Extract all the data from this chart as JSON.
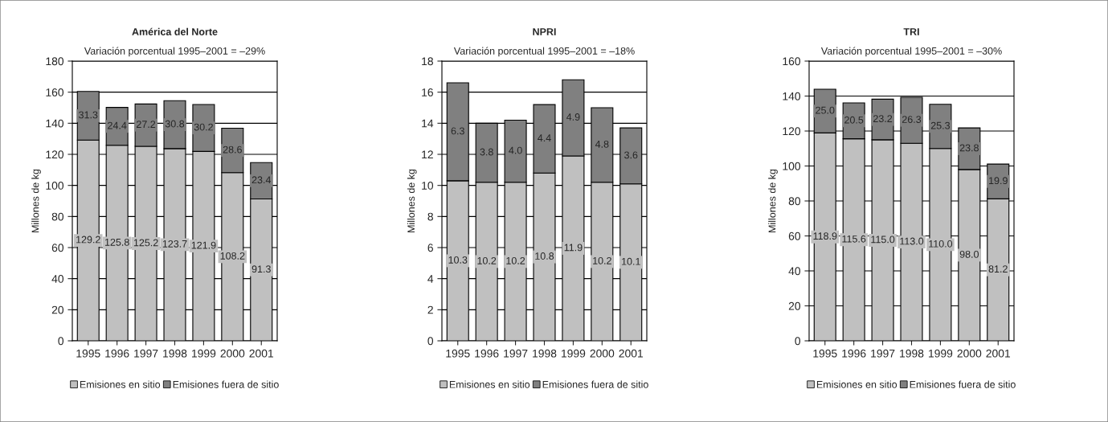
{
  "chart_data": [
    {
      "type": "bar",
      "stacked": true,
      "title": "América del Norte",
      "subtitle": "Variación porcentual 1995–2001 = –29%",
      "ylabel": "Millones de kg",
      "categories": [
        "1995",
        "1996",
        "1997",
        "1998",
        "1999",
        "2000",
        "2001"
      ],
      "ylim": [
        0,
        180
      ],
      "yticks": [
        0,
        20,
        40,
        60,
        80,
        100,
        120,
        140,
        160,
        180
      ],
      "grid": "y",
      "legend": "bottom",
      "series": [
        {
          "name": "Emisiones en sitio",
          "color": "#c0c0c0",
          "values": [
            129.2,
            125.8,
            125.2,
            123.7,
            121.9,
            108.2,
            91.3
          ],
          "value_labels": [
            "129.2",
            "125.8",
            "125.2",
            "123.7",
            "121.9",
            "108.2",
            "91.3"
          ]
        },
        {
          "name": "Emisiones fuera de sitio",
          "color": "#808080",
          "values": [
            31.3,
            24.4,
            27.2,
            30.8,
            30.2,
            28.6,
            23.4
          ],
          "value_labels": [
            "31.3",
            "24.4",
            "27.2",
            "30.8",
            "30.2",
            "28.6",
            "23.4"
          ]
        }
      ]
    },
    {
      "type": "bar",
      "stacked": true,
      "title": "NPRI",
      "subtitle": "Variación porcentual 1995–2001 = –18%",
      "ylabel": "Millones de kg",
      "categories": [
        "1995",
        "1996",
        "1997",
        "1998",
        "1999",
        "2000",
        "2001"
      ],
      "ylim": [
        0,
        18
      ],
      "yticks": [
        0,
        2,
        4,
        6,
        8,
        10,
        12,
        14,
        16,
        18
      ],
      "grid": "y",
      "legend": "bottom",
      "series": [
        {
          "name": "Emisiones en sitio",
          "color": "#c0c0c0",
          "values": [
            10.3,
            10.2,
            10.2,
            10.8,
            11.9,
            10.2,
            10.1
          ],
          "value_labels": [
            "10.3",
            "10.2",
            "10.2",
            "10.8",
            "11.9",
            "10.2",
            "10.1"
          ]
        },
        {
          "name": "Emisiones fuera de sitio",
          "color": "#808080",
          "values": [
            6.3,
            3.8,
            4.0,
            4.4,
            4.9,
            4.8,
            3.6
          ],
          "value_labels": [
            "6.3",
            "3.8",
            "4.0",
            "4.4",
            "4.9",
            "4.8",
            "3.6"
          ]
        }
      ]
    },
    {
      "type": "bar",
      "stacked": true,
      "title": "TRI",
      "subtitle": "Variación porcentual 1995–2001 = –30%",
      "ylabel": "Millones de kg",
      "categories": [
        "1995",
        "1996",
        "1997",
        "1998",
        "1999",
        "2000",
        "2001"
      ],
      "ylim": [
        0,
        160
      ],
      "yticks": [
        0,
        20,
        40,
        60,
        80,
        100,
        120,
        140,
        160
      ],
      "grid": "y",
      "legend": "bottom",
      "series": [
        {
          "name": "Emisiones en sitio",
          "color": "#c0c0c0",
          "values": [
            118.9,
            115.6,
            115.0,
            113.0,
            110.0,
            98.0,
            81.2
          ],
          "value_labels": [
            "118.9",
            "115.6",
            "115.0",
            "113.0",
            "110.0",
            "98.0",
            "81.2"
          ]
        },
        {
          "name": "Emisiones fuera de sitio",
          "color": "#808080",
          "values": [
            25.0,
            20.5,
            23.2,
            26.3,
            25.3,
            23.8,
            19.9
          ],
          "value_labels": [
            "25.0",
            "20.5",
            "23.2",
            "26.3",
            "25.3",
            "23.8",
            "19.9"
          ]
        }
      ]
    }
  ]
}
